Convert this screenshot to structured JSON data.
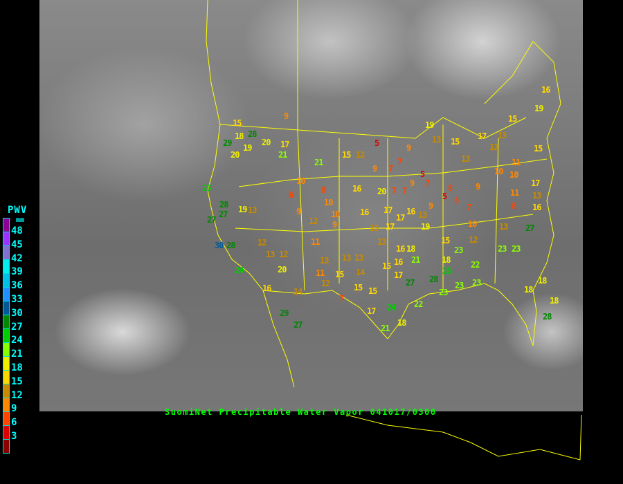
{
  "caption": "SuomiNet Precipitable Water Vapor 041017/0300",
  "legend": {
    "title": "PWV",
    "unit": "mm",
    "text_color": "#00ffff",
    "ticks": [
      "48",
      "45",
      "42",
      "39",
      "36",
      "33",
      "30",
      "27",
      "24",
      "21",
      "18",
      "15",
      "12",
      "9",
      "6",
      "3"
    ],
    "colors": [
      "#8b0099",
      "#9933ff",
      "#8070d0",
      "#00eeee",
      "#00c0e8",
      "#1e90ff",
      "#005a99",
      "#008800",
      "#00cc00",
      "#88ff00",
      "#eeee00",
      "#ffd700",
      "#c88a00",
      "#ff8800",
      "#ff4400",
      "#dd0000",
      "#8b0000"
    ]
  },
  "map_line_color": "#ffff00",
  "stations": [
    "9",
    "15",
    "18",
    "29",
    "28",
    "19",
    "20",
    "20",
    "17",
    "21",
    "21",
    "15",
    "12",
    "5",
    "9",
    "7",
    "7",
    "5",
    "9",
    "7",
    "7",
    "20",
    "7",
    "16",
    "10",
    "8",
    "10",
    "6",
    "9",
    "12",
    "10",
    "9",
    "16",
    "17",
    "16",
    "17",
    "13",
    "19",
    "9",
    "5",
    "8",
    "6",
    "9",
    "7",
    "10",
    "13",
    "27",
    "8",
    "16",
    "13",
    "17",
    "10",
    "11",
    "16",
    "19",
    "15",
    "13",
    "15",
    "13",
    "17",
    "19",
    "9",
    "13",
    "15",
    "12",
    "10",
    "11",
    "25",
    "28",
    "27",
    "27",
    "30",
    "28",
    "19",
    "13",
    "12",
    "13",
    "12",
    "11",
    "13",
    "11",
    "15",
    "12",
    "13",
    "13",
    "14",
    "15",
    "15",
    "7",
    "13",
    "17",
    "13",
    "16",
    "18",
    "15",
    "16",
    "17",
    "21",
    "15",
    "23",
    "12",
    "23",
    "23",
    "22",
    "25",
    "27",
    "28",
    "23",
    "23",
    "23",
    "24",
    "17",
    "21",
    "18",
    "29",
    "27",
    "24",
    "20",
    "16",
    "14",
    "18",
    "18",
    "18",
    "28",
    "22",
    "18"
  ]
}
